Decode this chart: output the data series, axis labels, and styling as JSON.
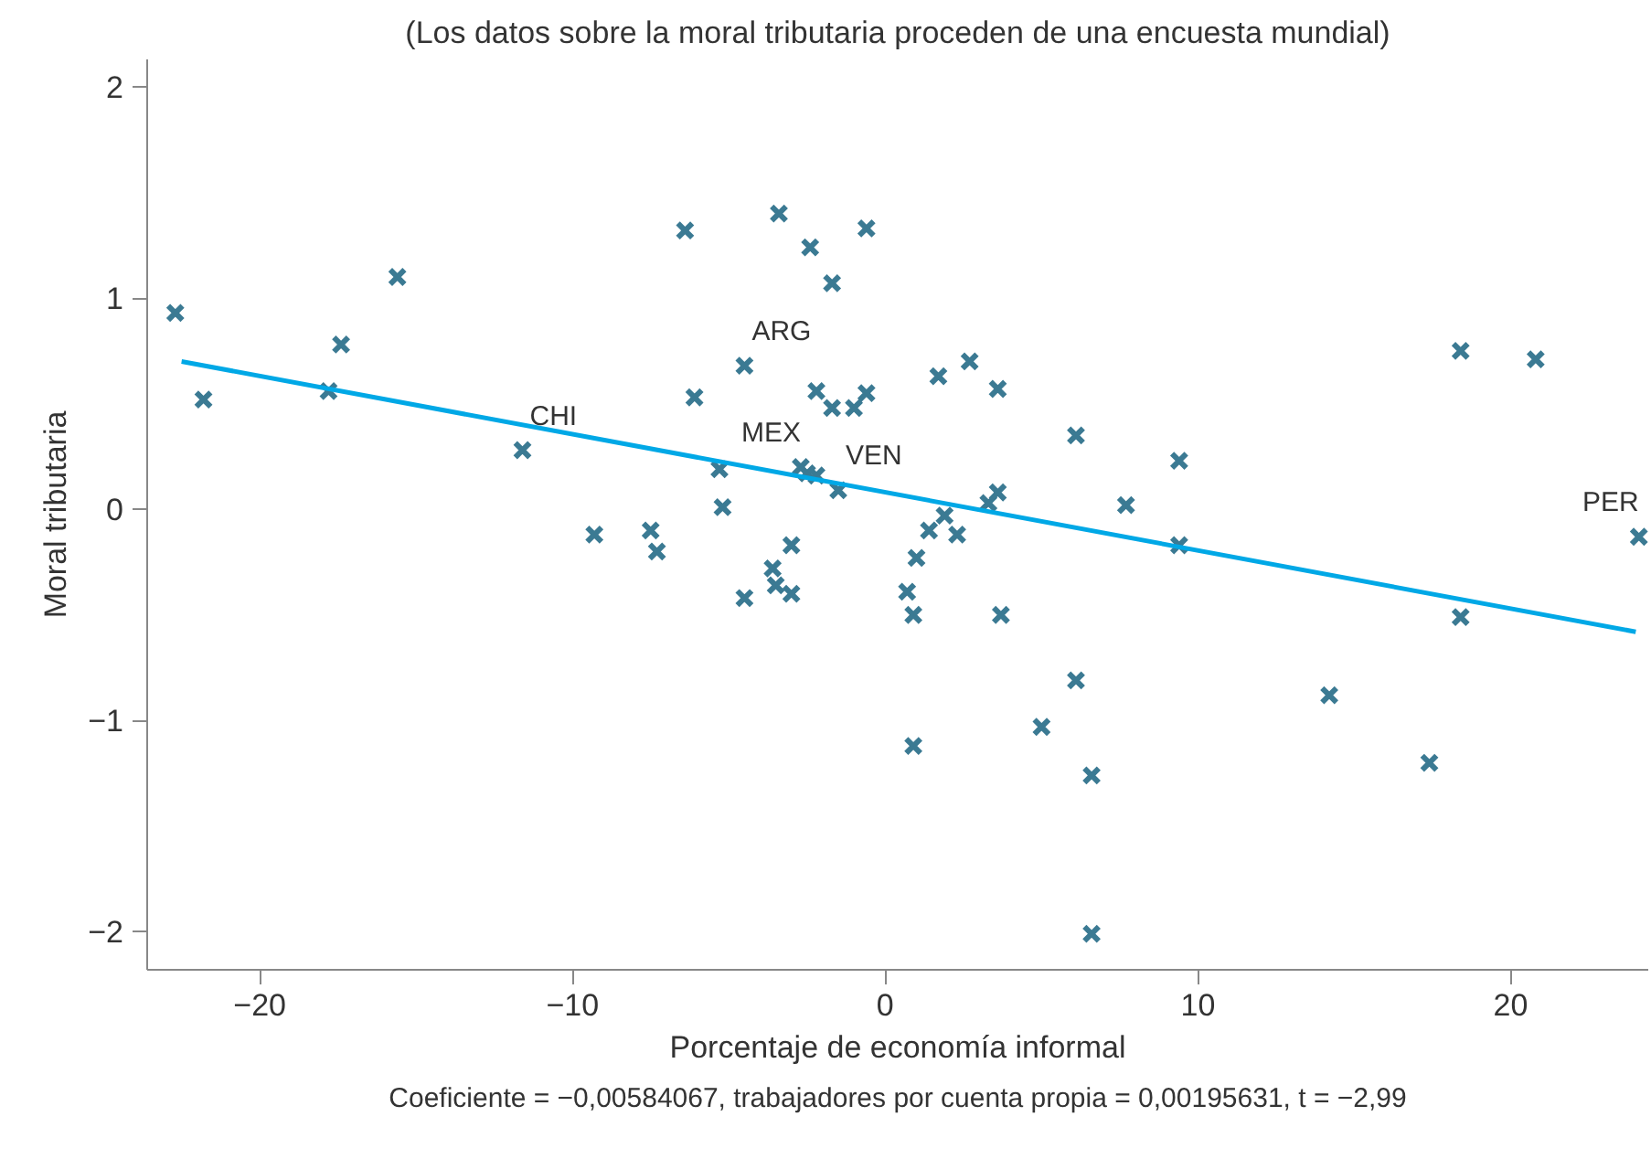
{
  "chart_data": {
    "type": "scatter",
    "title": "(Los datos sobre la moral tributaria proceden de una encuesta mundial)",
    "xlabel": "Porcentaje de economía informal",
    "ylabel": "Moral tributaria",
    "marker": "cross",
    "grid": false,
    "xlim": [
      -23.6,
      24.4
    ],
    "ylim": [
      -2.18,
      2.13
    ],
    "xticks": [
      {
        "value": -20,
        "label": "−20"
      },
      {
        "value": -10,
        "label": "−10"
      },
      0,
      10,
      20
    ],
    "yticks": [
      {
        "value": -2,
        "label": "−2"
      },
      {
        "value": -1,
        "label": "−1"
      },
      0,
      1,
      2
    ],
    "series": [
      {
        "color": "#3b7a93",
        "x": [
          -22.7,
          -21.8,
          -17.4,
          -17.8,
          -15.6,
          -11.6,
          -9.3,
          -7.5,
          -7.3,
          -6.4,
          -6.1,
          -5.3,
          -5.2,
          -4.5,
          -4.5,
          -3.4,
          -3.6,
          -3.5,
          -3.0,
          -3.0,
          -2.4,
          -2.2,
          -1.7,
          -1.7,
          -1.0,
          -0.6,
          -0.6,
          -2.7,
          -2.5,
          -2.2,
          -1.5,
          0.7,
          0.9,
          1.0,
          1.4,
          1.7,
          1.9,
          2.3,
          2.7,
          3.3,
          3.6,
          3.6,
          3.7,
          0.9,
          5.0,
          6.1,
          6.1,
          6.6,
          6.6,
          7.7,
          9.4,
          9.4,
          14.2,
          17.4,
          18.4,
          18.4,
          20.8,
          24.1
        ],
        "values": [
          0.93,
          0.52,
          0.78,
          0.56,
          1.1,
          0.28,
          -0.12,
          -0.1,
          -0.2,
          1.32,
          0.53,
          0.19,
          0.01,
          -0.42,
          0.68,
          1.4,
          -0.28,
          -0.36,
          -0.17,
          -0.4,
          1.24,
          0.56,
          1.07,
          0.48,
          0.48,
          0.55,
          1.33,
          0.2,
          0.17,
          0.16,
          0.09,
          -0.39,
          -0.5,
          -0.23,
          -0.1,
          0.63,
          -0.03,
          -0.12,
          0.7,
          0.03,
          0.08,
          0.57,
          -0.5,
          -1.12,
          -1.03,
          0.35,
          -0.81,
          -1.26,
          -2.01,
          0.02,
          0.23,
          -0.17,
          -0.88,
          -1.2,
          0.75,
          -0.51,
          0.71,
          -0.13
        ]
      },
      {
        "type": "line",
        "color": "#00a8e6",
        "marker": "none",
        "x": [
          -22.5,
          24.0
        ],
        "values": [
          0.7,
          -0.58
        ]
      }
    ],
    "annotations": [
      {
        "text": "CHI",
        "x": -11.6,
        "y": 0.28
      },
      {
        "text": "ARG",
        "x": -4.5,
        "y": 0.68
      },
      {
        "text": "MEX",
        "x": -2.7,
        "y": 0.2
      },
      {
        "text": "VEN",
        "x": -1.5,
        "y": 0.09
      },
      {
        "text": "PER",
        "x": 24.1,
        "y": -0.13
      },
      "Coeficiente = −0,00584067, trabajadores por cuenta propia = 0,00195631, t = −2,99"
    ]
  }
}
